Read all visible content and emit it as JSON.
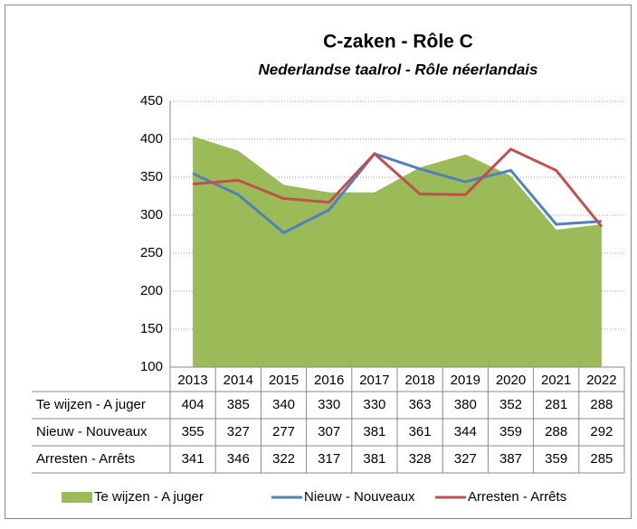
{
  "chart_data": {
    "type": "line",
    "title": "C-zaken - Rôle C",
    "subtitle": "Nederlandse taalrol - Rôle néerlandais",
    "categories": [
      "2013",
      "2014",
      "2015",
      "2016",
      "2017",
      "2018",
      "2019",
      "2020",
      "2021",
      "2022"
    ],
    "series": [
      {
        "name": "Te wijzen - A juger",
        "type": "area",
        "color": "#9bbb59",
        "values": [
          404,
          385,
          340,
          330,
          330,
          363,
          380,
          352,
          281,
          288
        ]
      },
      {
        "name": "Nieuw - Nouveaux",
        "type": "line",
        "color": "#4f81bd",
        "values": [
          355,
          327,
          277,
          307,
          381,
          361,
          344,
          359,
          288,
          292
        ]
      },
      {
        "name": "Arresten - Arrêts",
        "type": "line",
        "color": "#c0504d",
        "values": [
          341,
          346,
          322,
          317,
          381,
          328,
          327,
          387,
          359,
          285
        ]
      }
    ],
    "ylim": [
      100,
      450
    ],
    "yticks": [
      100,
      150,
      200,
      250,
      300,
      350,
      400,
      450
    ],
    "grid": true,
    "data_table": true,
    "legend": "bottom"
  }
}
